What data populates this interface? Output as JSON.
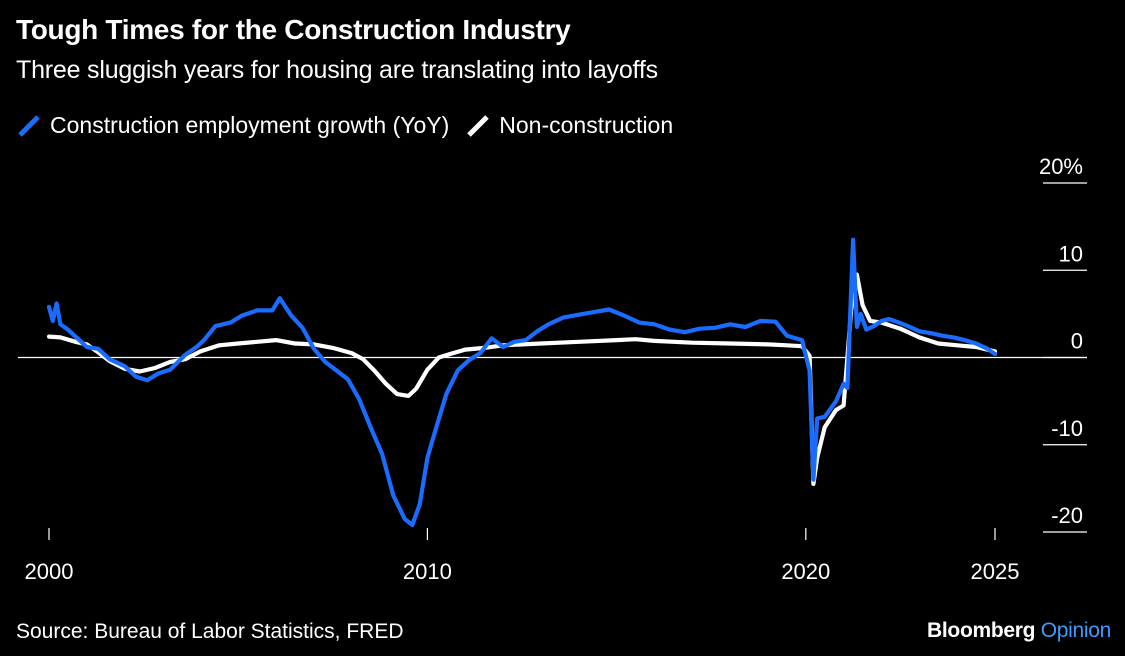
{
  "chart_data": {
    "type": "line",
    "title": "Tough Times for the Construction Industry",
    "subtitle": "Three sluggish years for housing are translating into layoffs",
    "source": "Source: Bureau of Labor Statistics, FRED",
    "brand": {
      "name": "Bloomberg",
      "suffix": "Opinion"
    },
    "ylim": [
      -20,
      20
    ],
    "yticks": [
      20,
      10,
      0,
      -10,
      -20
    ],
    "ytick_labels": [
      "20%",
      "10",
      "0",
      "-10",
      "-20"
    ],
    "xlim": [
      2000,
      2025.5
    ],
    "xticks": [
      2000,
      2010,
      2020,
      2025
    ],
    "xtick_labels": [
      "2000",
      "2010",
      "2020",
      "2025"
    ],
    "grid": false,
    "zero_line": true,
    "legend_position": "top-left",
    "colors": {
      "background": "#000000",
      "construction": "#1a6cff",
      "non_construction": "#ffffff"
    },
    "series": [
      {
        "name": "Construction employment growth (YoY)",
        "color": "#1a6cff",
        "x": [
          2000.0,
          2000.1,
          2000.2,
          2000.3,
          2000.5,
          2000.8,
          2001.0,
          2001.3,
          2001.6,
          2002.0,
          2002.3,
          2002.6,
          2002.9,
          2003.2,
          2003.6,
          2003.9,
          2004.1,
          2004.4,
          2004.8,
          2005.1,
          2005.5,
          2005.9,
          2006.1,
          2006.4,
          2006.7,
          2007.0,
          2007.3,
          2007.6,
          2007.9,
          2008.2,
          2008.5,
          2008.8,
          2009.1,
          2009.4,
          2009.6,
          2009.8,
          2010.0,
          2010.2,
          2010.5,
          2010.8,
          2011.1,
          2011.4,
          2011.7,
          2012.0,
          2012.3,
          2012.6,
          2012.9,
          2013.2,
          2013.6,
          2014.0,
          2014.4,
          2014.8,
          2015.2,
          2015.6,
          2016.0,
          2016.4,
          2016.8,
          2017.2,
          2017.6,
          2018.0,
          2018.4,
          2018.8,
          2019.2,
          2019.5,
          2019.9,
          2020.1,
          2020.2,
          2020.3,
          2020.5,
          2020.8,
          2021.0,
          2021.1,
          2021.25,
          2021.35,
          2021.45,
          2021.6,
          2021.8,
          2022.0,
          2022.2,
          2022.4,
          2022.7,
          2023.0,
          2023.3,
          2023.6,
          2023.9,
          2024.2,
          2024.5,
          2024.8,
          2025.0
        ],
        "y": [
          5.8,
          4.2,
          6.2,
          3.8,
          3.2,
          2.0,
          1.2,
          1.0,
          -0.2,
          -1.0,
          -2.2,
          -2.6,
          -1.8,
          -1.4,
          0.3,
          1.2,
          2.0,
          3.6,
          4.0,
          4.8,
          5.4,
          5.4,
          6.8,
          4.8,
          3.4,
          1.0,
          -0.5,
          -1.5,
          -2.5,
          -4.8,
          -8.0,
          -11.0,
          -15.8,
          -18.5,
          -19.2,
          -16.8,
          -11.5,
          -8.5,
          -4.2,
          -1.5,
          -0.3,
          0.5,
          2.2,
          1.2,
          1.8,
          2.0,
          3.0,
          3.8,
          4.6,
          4.9,
          5.2,
          5.5,
          4.8,
          4.0,
          3.8,
          3.2,
          2.9,
          3.3,
          3.4,
          3.8,
          3.5,
          4.2,
          4.1,
          2.5,
          2.0,
          -1.5,
          -14.0,
          -7.0,
          -6.8,
          -5.0,
          -3.0,
          -3.5,
          13.5,
          3.5,
          5.0,
          3.2,
          3.6,
          4.2,
          4.4,
          4.1,
          3.6,
          3.0,
          2.8,
          2.5,
          2.3,
          2.0,
          1.6,
          1.0,
          0.4
        ]
      },
      {
        "name": "Non-construction",
        "color": "#ffffff",
        "x": [
          2000.0,
          2000.3,
          2000.7,
          2001.0,
          2001.3,
          2001.6,
          2002.0,
          2002.4,
          2002.8,
          2003.2,
          2003.6,
          2004.0,
          2004.5,
          2005.0,
          2005.5,
          2006.0,
          2006.5,
          2007.0,
          2007.5,
          2008.0,
          2008.3,
          2008.6,
          2008.9,
          2009.2,
          2009.5,
          2009.7,
          2010.0,
          2010.3,
          2010.6,
          2011.0,
          2011.5,
          2012.0,
          2012.5,
          2013.0,
          2014.0,
          2015.0,
          2015.5,
          2016.0,
          2017.0,
          2018.0,
          2019.0,
          2019.5,
          2019.9,
          2020.1,
          2020.2,
          2020.3,
          2020.5,
          2020.8,
          2021.0,
          2021.2,
          2021.35,
          2021.5,
          2021.7,
          2022.0,
          2022.5,
          2023.0,
          2023.5,
          2024.0,
          2024.5,
          2025.0
        ],
        "y": [
          2.4,
          2.3,
          1.8,
          1.5,
          0.6,
          -0.4,
          -1.3,
          -1.6,
          -1.2,
          -0.5,
          -0.2,
          0.7,
          1.4,
          1.6,
          1.8,
          2.0,
          1.6,
          1.5,
          1.1,
          0.5,
          -0.2,
          -1.5,
          -3.0,
          -4.2,
          -4.4,
          -3.6,
          -1.4,
          0.0,
          0.4,
          0.9,
          1.1,
          1.4,
          1.5,
          1.6,
          1.8,
          2.0,
          2.1,
          1.9,
          1.7,
          1.6,
          1.5,
          1.4,
          1.3,
          0.2,
          -14.5,
          -11.5,
          -8.0,
          -6.0,
          -5.5,
          5.5,
          9.5,
          6.0,
          4.2,
          4.0,
          3.3,
          2.3,
          1.6,
          1.4,
          1.2,
          0.7
        ]
      }
    ]
  }
}
